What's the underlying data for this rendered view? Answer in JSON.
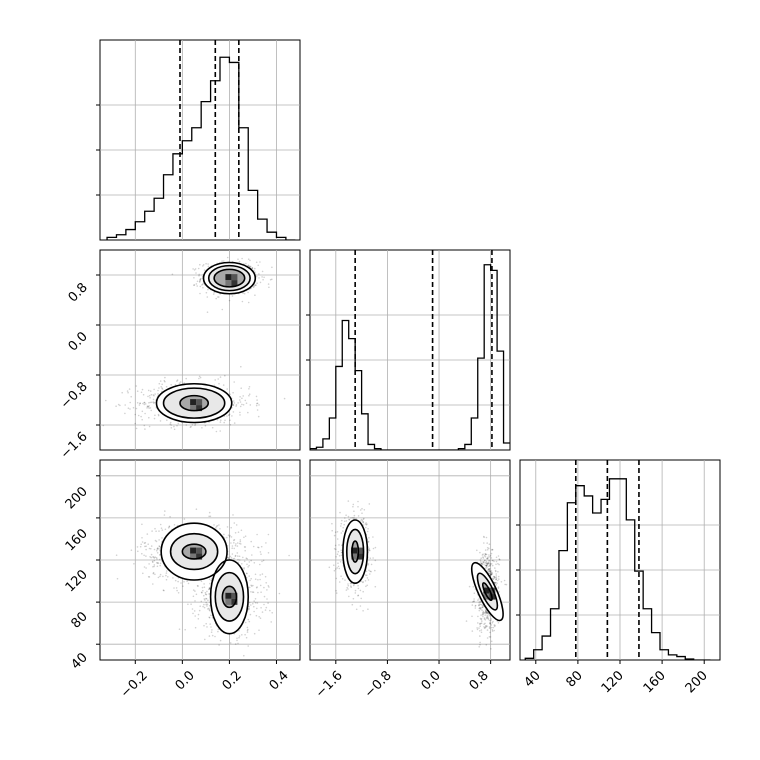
{
  "chart_data": [
    {
      "type": "histogram",
      "panel": "diag-0",
      "variable": 0,
      "bin_edges": [
        -0.32,
        -0.28,
        -0.24,
        -0.2,
        -0.16,
        -0.12,
        -0.08,
        -0.04,
        0.0,
        0.04,
        0.08,
        0.12,
        0.16,
        0.2,
        0.24,
        0.28,
        0.32,
        0.36,
        0.4,
        0.44,
        0.48
      ],
      "counts": [
        1,
        2,
        4,
        7,
        11,
        16,
        25,
        33,
        38,
        43,
        53,
        61,
        70,
        68,
        43,
        19,
        8,
        3,
        1,
        0
      ],
      "quantile_lines": [
        -0.01,
        0.14,
        0.24
      ],
      "ylim": [
        0,
        72
      ]
    },
    {
      "type": "histogram",
      "panel": "diag-1",
      "variable": 1,
      "bin_edges": [
        -2.0,
        -1.9,
        -1.8,
        -1.7,
        -1.6,
        -1.5,
        -1.4,
        -1.3,
        -1.2,
        -1.1,
        -1.0,
        -0.9,
        -0.8,
        -0.7,
        -0.6,
        -0.5,
        -0.4,
        -0.3,
        -0.2,
        -0.1,
        0.0,
        0.1,
        0.2,
        0.3,
        0.4,
        0.5,
        0.6,
        0.7,
        0.8,
        0.9,
        1.0,
        1.1
      ],
      "counts": [
        1,
        2,
        8,
        23,
        60,
        93,
        80,
        57,
        26,
        4,
        1,
        0,
        0,
        0,
        0,
        0,
        0,
        0,
        0,
        0,
        0,
        0,
        0,
        1,
        4,
        23,
        66,
        133,
        129,
        71,
        5
      ],
      "quantile_lines": [
        -1.3,
        -0.1,
        0.82
      ],
      "ylim": [
        0,
        135
      ]
    },
    {
      "type": "histogram",
      "panel": "diag-2",
      "variable": 2,
      "bin_edges": [
        30,
        38,
        46,
        54,
        62,
        70,
        78,
        86,
        94,
        102,
        110,
        118,
        126,
        134,
        142,
        150,
        158,
        166,
        174,
        182,
        190,
        198,
        206
      ],
      "counts": [
        0.5,
        3,
        7,
        15,
        32,
        46,
        51,
        48,
        43,
        47,
        53,
        53,
        41,
        26,
        15,
        8,
        3,
        1.5,
        1,
        0.3,
        0,
        0
      ],
      "quantile_lines": [
        78,
        108,
        138
      ],
      "ylim": [
        0,
        55
      ]
    },
    {
      "type": "scatter",
      "panel": "pair-1-0",
      "x_variable": 0,
      "y_variable": 1,
      "xlim": [
        -0.35,
        0.5
      ],
      "ylim": [
        -2.0,
        1.2
      ],
      "y_ticks": [
        0.8,
        0.0,
        -0.8,
        -1.6
      ],
      "modes": [
        {
          "center": [
            0.2,
            0.75
          ],
          "spread": [
            0.06,
            0.13
          ]
        },
        {
          "center": [
            0.05,
            -1.25
          ],
          "spread": [
            0.12,
            0.17
          ]
        }
      ],
      "contour_levels": [
        {
          "mode": 0,
          "radii": [
            0.065,
            0.14
          ]
        },
        {
          "mode": 0,
          "radii": [
            0.088,
            0.2
          ]
        },
        {
          "mode": 0,
          "radii": [
            0.11,
            0.25
          ]
        },
        {
          "mode": 1,
          "radii": [
            0.06,
            0.12
          ]
        },
        {
          "mode": 1,
          "radii": [
            0.13,
            0.24
          ]
        },
        {
          "mode": 1,
          "radii": [
            0.16,
            0.31
          ]
        }
      ]
    },
    {
      "type": "scatter",
      "panel": "pair-2-0",
      "x_variable": 0,
      "y_variable": 2,
      "xlim": [
        -0.35,
        0.5
      ],
      "ylim": [
        25,
        215
      ],
      "y_ticks": [
        200,
        160,
        120,
        80,
        40
      ],
      "x_ticks": [
        -0.2,
        0.0,
        0.2,
        0.4
      ],
      "modes": [
        {
          "center": [
            0.05,
            128
          ],
          "spread": [
            0.11,
            14
          ]
        },
        {
          "center": [
            0.2,
            85
          ],
          "spread": [
            0.07,
            18
          ]
        }
      ],
      "contour_levels": [
        {
          "mode": 0,
          "radii": [
            0.05,
            7
          ]
        },
        {
          "mode": 0,
          "radii": [
            0.1,
            17
          ]
        },
        {
          "mode": 0,
          "radii": [
            0.14,
            27
          ]
        },
        {
          "mode": 1,
          "radii": [
            0.03,
            10
          ]
        },
        {
          "mode": 1,
          "radii": [
            0.06,
            23
          ]
        },
        {
          "mode": 1,
          "radii": [
            0.08,
            35
          ]
        }
      ]
    },
    {
      "type": "scatter",
      "panel": "pair-2-1",
      "x_variable": 1,
      "y_variable": 2,
      "xlim": [
        -2.0,
        1.1
      ],
      "ylim": [
        25,
        215
      ],
      "x_ticks": [
        -1.6,
        -0.8,
        0.0,
        0.8
      ],
      "modes": [
        {
          "center": [
            -1.3,
            128
          ],
          "spread": [
            0.12,
            16
          ]
        },
        {
          "center": [
            0.75,
            90
          ],
          "spread": [
            0.09,
            19
          ]
        }
      ],
      "contour_levels": [
        {
          "mode": 0,
          "radii": [
            0.05,
            10
          ]
        },
        {
          "mode": 0,
          "radii": [
            0.13,
            21
          ]
        },
        {
          "mode": 0,
          "radii": [
            0.19,
            30
          ]
        },
        {
          "mode": 1,
          "radii": [
            0.04,
            9
          ]
        },
        {
          "mode": 1,
          "radii": [
            0.09,
            19
          ]
        },
        {
          "mode": 1,
          "radii": [
            0.14,
            30
          ]
        }
      ]
    }
  ],
  "axes": {
    "y_ticks_var1": [
      "0.8",
      "0.0",
      "−0.8",
      "−1.6"
    ],
    "y_ticks_var2": [
      "200",
      "160",
      "120",
      "80",
      "40"
    ],
    "x_ticks_var0": [
      "−0.2",
      "0.0",
      "0.2",
      "0.4"
    ],
    "x_ticks_var1": [
      "−1.6",
      "−0.8",
      "0.0",
      "0.8"
    ],
    "x_ticks_var2": [
      "40",
      "80",
      "120",
      "160",
      "200"
    ]
  },
  "style": {
    "line_color": "#000000",
    "grid_color": "#b0b0b0",
    "scatter_color": "#000000"
  }
}
